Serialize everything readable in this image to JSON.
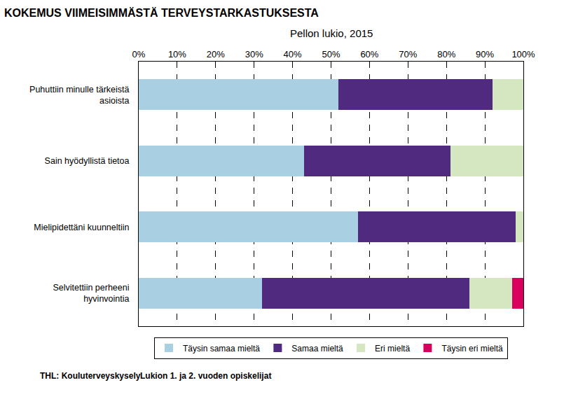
{
  "chart_data": {
    "type": "bar",
    "orientation": "horizontal",
    "stacked": true,
    "title": "KOKEMUS VIIMEISIMMÄSTÄ TERVEYSTARKASTUKSESTA",
    "subtitle": "Pellon lukio, 2015",
    "annotations": [
      "Lukion 1. ja 2. vuoden opiskelijat",
      "THL: Kouluterveyskysely"
    ],
    "categories": [
      "Puhuttiin minulle tärkeistä\nasioista",
      "Sain hyödyllistä tietoa",
      "Mielipidettäni kuunneltiin",
      "Selvitettiin perheeni\nhyvinvointia"
    ],
    "series": [
      {
        "name": "Täysin samaa mieltä",
        "color": "#a8cfe2",
        "values": [
          52,
          43,
          57,
          32
        ]
      },
      {
        "name": "Samaa mieltä",
        "color": "#4f2a7e",
        "values": [
          40,
          38,
          41,
          54
        ]
      },
      {
        "name": "Eri mieltä",
        "color": "#d5e7c0",
        "values": [
          8,
          19,
          2,
          11
        ]
      },
      {
        "name": "Täysin eri mieltä",
        "color": "#d8005c",
        "values": [
          0,
          0,
          0,
          3
        ]
      }
    ],
    "xlim": [
      0,
      100
    ],
    "xticks": [
      {
        "value": 0,
        "label": "0%"
      },
      {
        "value": 10,
        "label": "10%"
      },
      {
        "value": 20,
        "label": "20%"
      },
      {
        "value": 30,
        "label": "30%"
      },
      {
        "value": 40,
        "label": "40%"
      },
      {
        "value": 50,
        "label": "50%"
      },
      {
        "value": 60,
        "label": "60%"
      },
      {
        "value": 70,
        "label": "70%"
      },
      {
        "value": 80,
        "label": "80%"
      },
      {
        "value": 90,
        "label": "90%"
      },
      {
        "value": 100,
        "label": "100%"
      }
    ],
    "grid": true,
    "legend": "bottom"
  }
}
